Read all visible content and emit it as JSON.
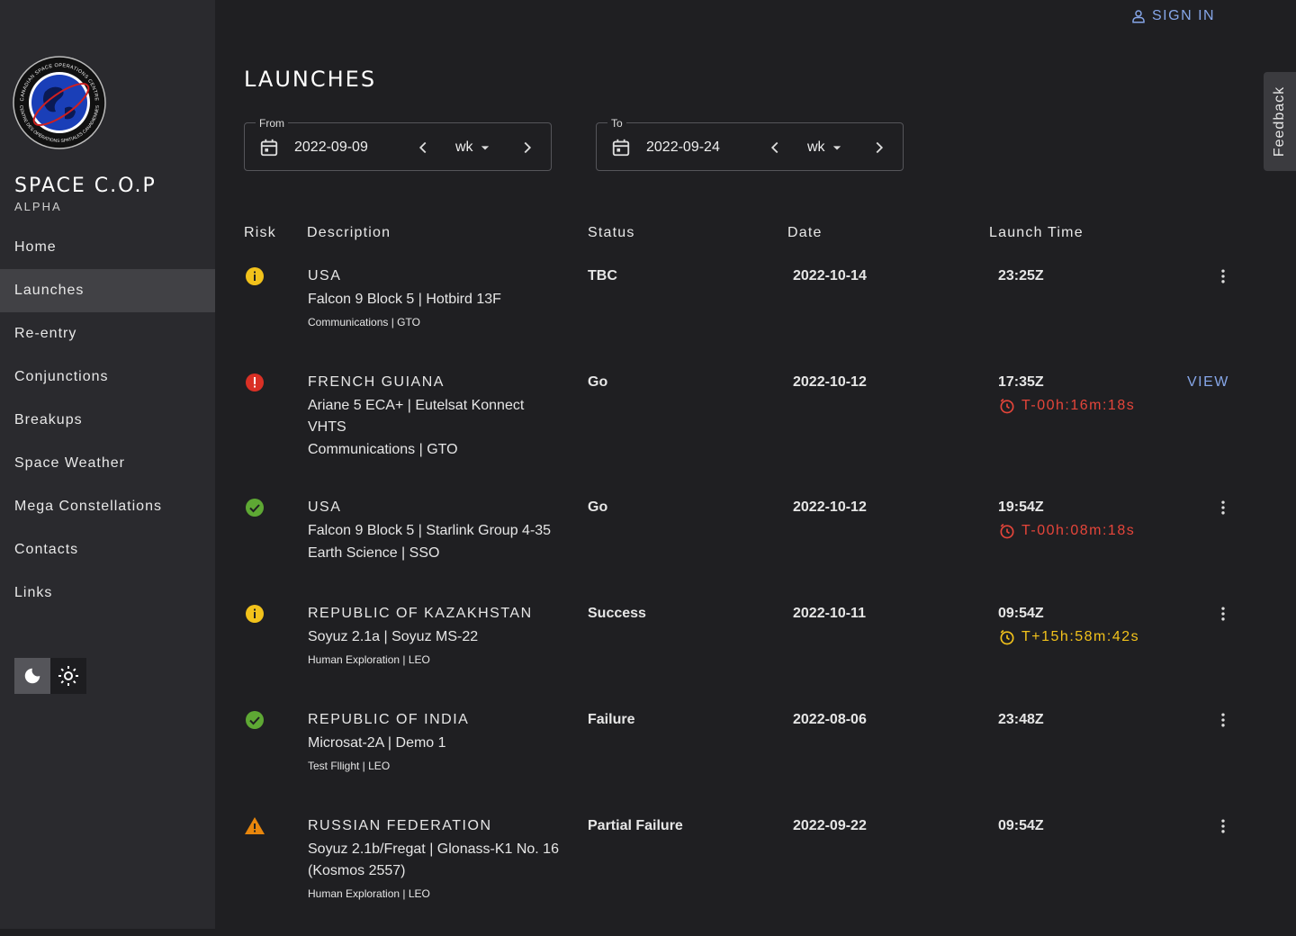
{
  "sidebar": {
    "logo_top": "CANADIAN SPACE OPERATIONS CENTRE",
    "logo_bottom": "CENTRE DES OPÉRATIONS SPATIALES CANADIENNES",
    "brand": "SPACE C.O.P",
    "brand_sub": "ALPHA",
    "nav": [
      "Home",
      "Launches",
      "Re-entry",
      "Conjunctions",
      "Breakups",
      "Space Weather",
      "Mega Constellations",
      "Contacts",
      "Links"
    ],
    "active_index": 1
  },
  "header": {
    "sign_in": "SIGN IN",
    "feedback": "Feedback"
  },
  "title": "LAUNCHES",
  "filters": [
    {
      "label": "From",
      "date": "2022-09-09",
      "unit": "wk"
    },
    {
      "label": "To",
      "date": "2022-09-24",
      "unit": "wk"
    }
  ],
  "table": {
    "headers": [
      "Risk",
      "Description",
      "Status",
      "Date",
      "Launch Time"
    ],
    "rows": [
      {
        "risk": "info",
        "country": "USA",
        "vehicle": "Falcon 9 Block 5 | Hotbird 13F",
        "mission": "Communications | GTO",
        "status": "TBC",
        "date": "2022-10-14",
        "time": "23:25Z"
      },
      {
        "risk": "error",
        "country": "FRENCH GUIANA",
        "vehicle": "Ariane 5 ECA+ | Eutelsat Konnect VHTS",
        "mission": "Communications | GTO",
        "status": "Go",
        "date": "2022-10-12",
        "time": "17:35Z",
        "countdown": "T-00h:16m:18s",
        "countdown_color": "#e5453a",
        "action": "VIEW"
      },
      {
        "risk": "ok",
        "country": "USA",
        "vehicle": "Falcon 9 Block 5 | Starlink Group 4-35",
        "mission": "Earth Science | SSO",
        "status": "Go",
        "date": "2022-10-12",
        "time": "19:54Z",
        "countdown": "T-00h:08m:18s",
        "countdown_color": "#e5453a"
      },
      {
        "risk": "info",
        "country": "REPUBLIC OF KAZAKHSTAN",
        "vehicle": "Soyuz 2.1a | Soyuz MS-22",
        "mission": "Human Exploration | LEO",
        "status": "Success",
        "date": "2022-10-11",
        "time": "09:54Z",
        "countdown": "T+15h:58m:42s",
        "countdown_color": "#f2c21b"
      },
      {
        "risk": "ok",
        "country": "REPUBLIC OF INDIA",
        "vehicle": "Microsat-2A | Demo 1",
        "mission": "Test Fllight | LEO",
        "status": "Failure",
        "date": "2022-08-06",
        "time": "23:48Z"
      },
      {
        "risk": "warning",
        "country": "RUSSIAN FEDERATION",
        "vehicle": "Soyuz 2.1b/Fregat | Glonass-K1 No. 16 (Kosmos 2557)",
        "mission": "Human Exploration | LEO",
        "status": "Partial Failure",
        "date": "2022-09-22",
        "time": "09:54Z"
      }
    ]
  }
}
